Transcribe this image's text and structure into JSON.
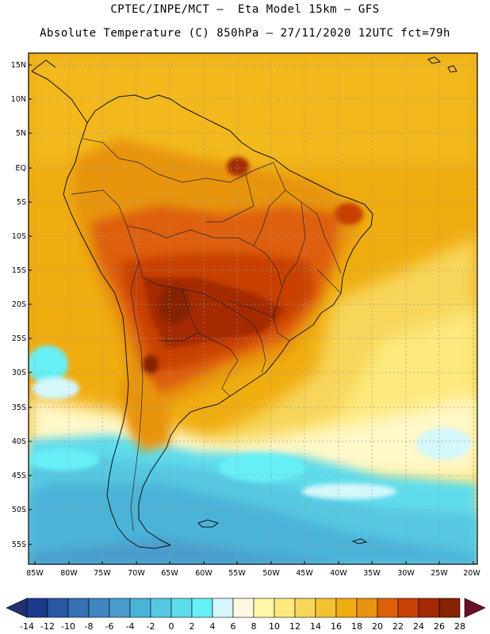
{
  "header": {
    "line1": "CPTEC/INPE/MCT –  Eta Model 15km – GFS",
    "line2": "Absolute Temperature (C) 850hPa – 27/11/2020 12UTC fct=79h"
  },
  "map": {
    "lat_labels": [
      "15N",
      "10N",
      "5N",
      "EQ",
      "5S",
      "10S",
      "15S",
      "20S",
      "25S",
      "30S",
      "35S",
      "40S",
      "45S",
      "50S",
      "55S"
    ],
    "lon_labels": [
      "85W",
      "80W",
      "75W",
      "70W",
      "65W",
      "60W",
      "55W",
      "50W",
      "45W",
      "40W",
      "35W",
      "30W",
      "25W",
      "20W"
    ]
  },
  "colorbar": {
    "labels": [
      "-14",
      "-12",
      "-10",
      "-8",
      "-6",
      "-4",
      "-2",
      "0",
      "2",
      "4",
      "6",
      "8",
      "10",
      "12",
      "14",
      "16",
      "18",
      "20",
      "22",
      "24",
      "26",
      "28"
    ],
    "colors": [
      "#1c3a8c",
      "#2a57a3",
      "#3571b3",
      "#3f87c2",
      "#4a9dcc",
      "#4bb3d8",
      "#56c8e2",
      "#5fdcec",
      "#66f0f6",
      "#d4f7fb",
      "#fff8e2",
      "#fff8a8",
      "#fde97d",
      "#f8d65a",
      "#f2c233",
      "#f0ad10",
      "#e89410",
      "#de5f08",
      "#c74104",
      "#a52a04",
      "#862102"
    ],
    "under_color": "#23306e",
    "over_color": "#6a0d29"
  }
}
